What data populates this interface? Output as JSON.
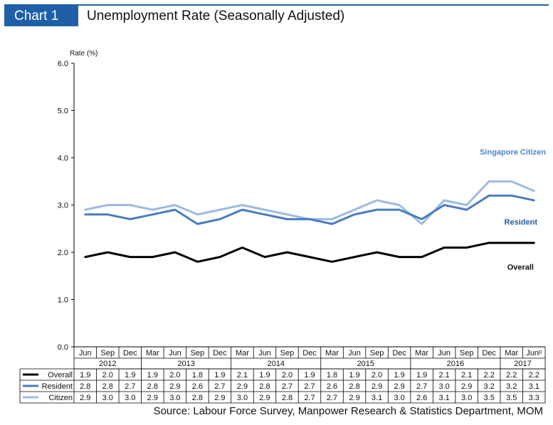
{
  "header": {
    "badge": "Chart 1",
    "title": "Unemployment Rate (Seasonally Adjusted)"
  },
  "source": "Source: Labour Force Survey, Manpower Research & Statistics Department, MOM",
  "colors": {
    "overall": "#000000",
    "resident": "#4a7cc0",
    "citizen": "#9bbbe3",
    "accent": "#1f5fa8"
  },
  "chart_data": {
    "type": "line",
    "title": "Unemployment Rate (Seasonally Adjusted)",
    "ylabel": "Rate (%)",
    "ylim": [
      0,
      6
    ],
    "yticks": [
      "0.0",
      "1.0",
      "2.0",
      "3.0",
      "4.0",
      "5.0",
      "6.0"
    ],
    "grid": false,
    "categories": [
      "Jun",
      "Sep",
      "Dec",
      "Mar",
      "Jun",
      "Sep",
      "Dec",
      "Mar",
      "Jun",
      "Sep",
      "Dec",
      "Mar",
      "Jun",
      "Sep",
      "Dec",
      "Mar",
      "Jun",
      "Sep",
      "Dec",
      "Mar",
      "Junᵖ"
    ],
    "years": [
      {
        "label": "2012",
        "span": 3
      },
      {
        "label": "2013",
        "span": 4
      },
      {
        "label": "2014",
        "span": 4
      },
      {
        "label": "2015",
        "span": 4
      },
      {
        "label": "2016",
        "span": 4
      },
      {
        "label": "2017",
        "span": 2
      }
    ],
    "series": [
      {
        "name": "Overall",
        "label": "Overall",
        "color": "#000000",
        "values": [
          1.9,
          2.0,
          1.9,
          1.9,
          2.0,
          1.8,
          1.9,
          2.1,
          1.9,
          2.0,
          1.9,
          1.8,
          1.9,
          2.0,
          1.9,
          1.9,
          2.1,
          2.1,
          2.2,
          2.2,
          2.2
        ]
      },
      {
        "name": "Resident",
        "label": "Resident",
        "color": "#4a7cc0",
        "values": [
          2.8,
          2.8,
          2.7,
          2.8,
          2.9,
          2.6,
          2.7,
          2.9,
          2.8,
          2.7,
          2.7,
          2.6,
          2.8,
          2.9,
          2.9,
          2.7,
          3.0,
          2.9,
          3.2,
          3.2,
          3.1
        ]
      },
      {
        "name": "Citizen",
        "label": "Singapore Citizen",
        "color": "#9bbbe3",
        "values": [
          2.9,
          3.0,
          3.0,
          2.9,
          3.0,
          2.8,
          2.9,
          3.0,
          2.9,
          2.8,
          2.7,
          2.7,
          2.9,
          3.1,
          3.0,
          2.6,
          3.1,
          3.0,
          3.5,
          3.5,
          3.3
        ]
      }
    ]
  }
}
